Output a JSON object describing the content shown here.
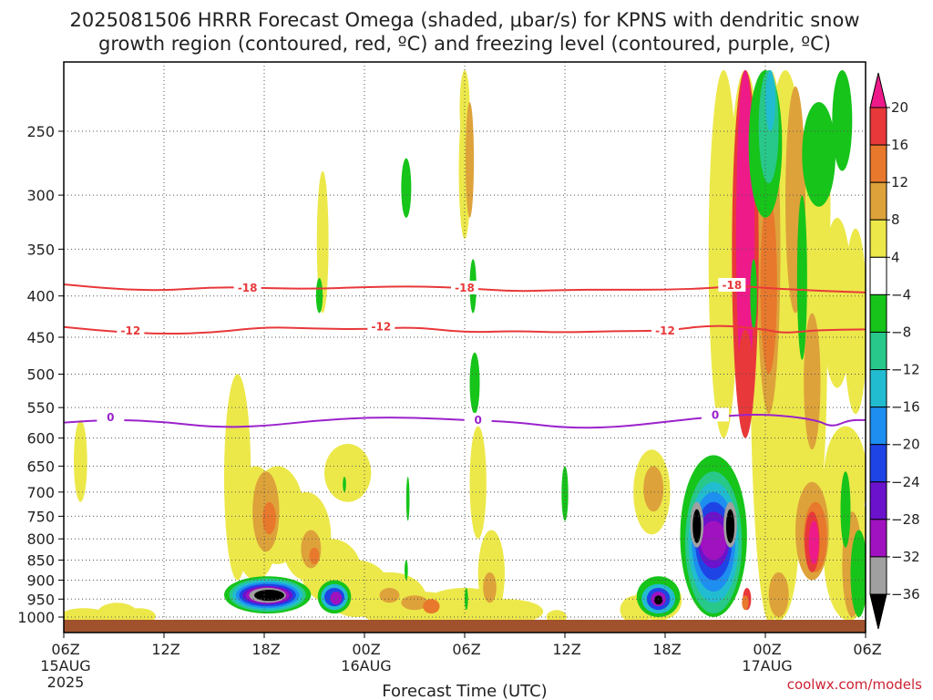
{
  "title_line1": "2025081506 HRRR Forecast Omega (shaded, μbar/s) for KPNS with dendritic snow",
  "title_line2": "growth region (contoured, red, ºC) and freezing level (contoured, purple, ºC)",
  "credit": "coolwx.com/models",
  "chart_data": {
    "type": "heatmap",
    "title": "2025081506 HRRR Forecast Omega (shaded, μbar/s) for KPNS with dendritic snow growth region (contoured, red, ºC) and freezing level (contoured, purple, ºC)",
    "xlabel": "Forecast Time (UTC)",
    "ylabel": "",
    "x_range_hours": [
      0,
      48
    ],
    "y_range_mb": [
      1020,
      200
    ],
    "y_scale": "log-pressure",
    "grid": true,
    "x_ticks": [
      {
        "hour": 0,
        "label": "06Z",
        "date": "15AUG",
        "year": "2025"
      },
      {
        "hour": 6,
        "label": "12Z",
        "date": "",
        "year": ""
      },
      {
        "hour": 12,
        "label": "18Z",
        "date": "",
        "year": ""
      },
      {
        "hour": 18,
        "label": "00Z",
        "date": "16AUG",
        "year": ""
      },
      {
        "hour": 24,
        "label": "06Z",
        "date": "",
        "year": ""
      },
      {
        "hour": 30,
        "label": "12Z",
        "date": "",
        "year": ""
      },
      {
        "hour": 36,
        "label": "18Z",
        "date": "",
        "year": ""
      },
      {
        "hour": 42,
        "label": "00Z",
        "date": "17AUG",
        "year": ""
      },
      {
        "hour": 48,
        "label": "06Z",
        "date": "",
        "year": ""
      }
    ],
    "y_ticks": [
      250,
      300,
      350,
      400,
      450,
      500,
      550,
      600,
      650,
      700,
      750,
      800,
      850,
      900,
      950,
      1000
    ],
    "colorbar": {
      "levels": [
        "20",
        "16",
        "12",
        "8",
        "4",
        "−4",
        "−8",
        "−12",
        "−16",
        "−20",
        "−24",
        "−28",
        "−32",
        "−36"
      ],
      "colors": [
        "#ee1a8a",
        "#e8383a",
        "#e8792c",
        "#dea23a",
        "#ece84a",
        "#ffffff",
        "#16c41a",
        "#27c88a",
        "#22bcd0",
        "#1e8ef0",
        "#1e44e6",
        "#6a12cc",
        "#a012c0",
        "#a0a0a0",
        "#000000"
      ]
    },
    "contours": [
      {
        "name": "-18",
        "color": "#e8383a",
        "points": [
          [
            0,
            387
          ],
          [
            3,
            392
          ],
          [
            6,
            394
          ],
          [
            9,
            390
          ],
          [
            12,
            391
          ],
          [
            15,
            392
          ],
          [
            18,
            390
          ],
          [
            21,
            389
          ],
          [
            24,
            391
          ],
          [
            27,
            395
          ],
          [
            30,
            393
          ],
          [
            33,
            393
          ],
          [
            36,
            393
          ],
          [
            39,
            391
          ],
          [
            40,
            388
          ],
          [
            42,
            391
          ],
          [
            45,
            394
          ],
          [
            48,
            396
          ]
        ],
        "labels": [
          [
            11,
            391
          ],
          [
            24,
            391
          ],
          [
            40,
            388
          ]
        ]
      },
      {
        "name": "-12",
        "color": "#e8383a",
        "points": [
          [
            0,
            437
          ],
          [
            3,
            443
          ],
          [
            6,
            446
          ],
          [
            9,
            444
          ],
          [
            12,
            437
          ],
          [
            15,
            439
          ],
          [
            18,
            440
          ],
          [
            21,
            437
          ],
          [
            24,
            444
          ],
          [
            27,
            442
          ],
          [
            30,
            444
          ],
          [
            33,
            442
          ],
          [
            36,
            442
          ],
          [
            39,
            434
          ],
          [
            42,
            440
          ],
          [
            43,
            445
          ],
          [
            45,
            441
          ],
          [
            48,
            440
          ]
        ],
        "labels": [
          [
            4,
            442
          ],
          [
            19,
            437
          ],
          [
            36,
            442
          ]
        ]
      },
      {
        "name": "0",
        "color": "#9b22cc",
        "points": [
          [
            0,
            574
          ],
          [
            3,
            569
          ],
          [
            6,
            573
          ],
          [
            9,
            582
          ],
          [
            12,
            580
          ],
          [
            15,
            571
          ],
          [
            18,
            566
          ],
          [
            21,
            566
          ],
          [
            24,
            570
          ],
          [
            27,
            573
          ],
          [
            30,
            583
          ],
          [
            33,
            582
          ],
          [
            36,
            573
          ],
          [
            39,
            564
          ],
          [
            42,
            560
          ],
          [
            45,
            569
          ],
          [
            46,
            582
          ],
          [
            47,
            570
          ],
          [
            48,
            570
          ]
        ],
        "labels": [
          [
            2.8,
            566
          ],
          [
            24.8,
            570
          ],
          [
            39,
            562
          ]
        ]
      }
    ],
    "features": [
      {
        "type": "positive_omega",
        "hours": [
          40.5,
          41.2
        ],
        "p_top": 210,
        "p_bottom": 560,
        "max": 20
      },
      {
        "type": "negative_omega",
        "hours": [
          10.5,
          15.5
        ],
        "p_top": 900,
        "p_bottom": 985,
        "min": -36
      },
      {
        "type": "negative_omega",
        "hours": [
          35.5,
          42.5
        ],
        "p_top": 620,
        "p_bottom": 990,
        "min": -36
      }
    ]
  }
}
